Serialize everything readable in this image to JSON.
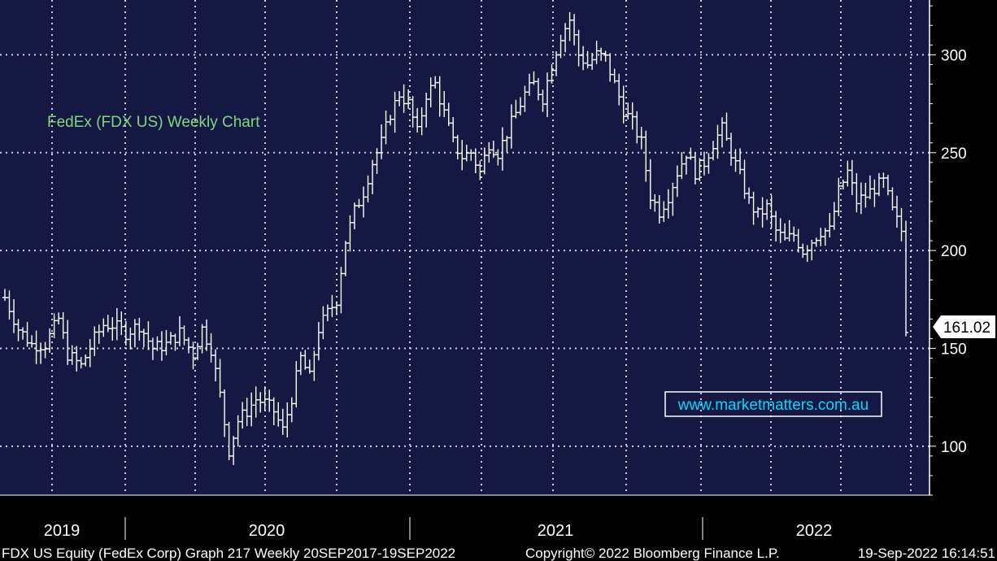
{
  "chart_data": {
    "type": "line",
    "title": "FedEx (FDX US) Weekly Chart",
    "watermark": "www.marketmatters.com.au",
    "last_price_label": "161.02",
    "ylim": [
      75,
      328
    ],
    "yticks": [
      100,
      150,
      200,
      250,
      300
    ],
    "xlabel": "",
    "ylabel": "",
    "x_labels": [
      "2019",
      "2020",
      "2021",
      "2022"
    ],
    "grid": true,
    "series": [
      {
        "values": [
          [
            0,
            176
          ],
          [
            3,
            160
          ],
          [
            6,
            152
          ],
          [
            9,
            152
          ],
          [
            12,
            165
          ],
          [
            14,
            147
          ],
          [
            17,
            141
          ],
          [
            20,
            155
          ],
          [
            22,
            162
          ],
          [
            24,
            162
          ],
          [
            27,
            158
          ],
          [
            30,
            162
          ],
          [
            33,
            150
          ],
          [
            36,
            152
          ],
          [
            39,
            158
          ],
          [
            42,
            147
          ],
          [
            44,
            160
          ],
          [
            46,
            150
          ],
          [
            48,
            126
          ],
          [
            50,
            98
          ],
          [
            52,
            113
          ],
          [
            54,
            118
          ],
          [
            56,
            124
          ],
          [
            58,
            122
          ],
          [
            60,
            118
          ],
          [
            62,
            108
          ],
          [
            64,
            125
          ],
          [
            66,
            145
          ],
          [
            68,
            135
          ],
          [
            70,
            160
          ],
          [
            72,
            168
          ],
          [
            74,
            175
          ],
          [
            76,
            205
          ],
          [
            78,
            220
          ],
          [
            80,
            230
          ],
          [
            82,
            245
          ],
          [
            84,
            255
          ],
          [
            86,
            270
          ],
          [
            88,
            280
          ],
          [
            90,
            275
          ],
          [
            92,
            260
          ],
          [
            94,
            280
          ],
          [
            96,
            285
          ],
          [
            98,
            270
          ],
          [
            100,
            255
          ],
          [
            102,
            248
          ],
          [
            104,
            250
          ],
          [
            106,
            240
          ],
          [
            108,
            255
          ],
          [
            110,
            250
          ],
          [
            112,
            260
          ],
          [
            114,
            270
          ],
          [
            116,
            280
          ],
          [
            118,
            285
          ],
          [
            120,
            278
          ],
          [
            122,
            295
          ],
          [
            124,
            310
          ],
          [
            126,
            318
          ],
          [
            128,
            300
          ],
          [
            130,
            295
          ],
          [
            132,
            300
          ],
          [
            134,
            298
          ],
          [
            136,
            285
          ],
          [
            138,
            272
          ],
          [
            140,
            265
          ],
          [
            142,
            255
          ],
          [
            144,
            228
          ],
          [
            146,
            220
          ],
          [
            148,
            228
          ],
          [
            150,
            240
          ],
          [
            152,
            250
          ],
          [
            154,
            240
          ],
          [
            156,
            245
          ],
          [
            158,
            255
          ],
          [
            160,
            262
          ],
          [
            162,
            250
          ],
          [
            164,
            238
          ],
          [
            166,
            225
          ],
          [
            168,
            218
          ],
          [
            170,
            222
          ],
          [
            172,
            210
          ],
          [
            174,
            205
          ],
          [
            176,
            208
          ],
          [
            178,
            200
          ],
          [
            180,
            205
          ],
          [
            182,
            210
          ],
          [
            184,
            210
          ],
          [
            186,
            230
          ],
          [
            188,
            240
          ],
          [
            190,
            225
          ],
          [
            192,
            228
          ],
          [
            194,
            232
          ],
          [
            196,
            235
          ],
          [
            198,
            220
          ],
          [
            200,
            210
          ],
          [
            201,
            161
          ]
        ]
      }
    ]
  },
  "footer": {
    "left": "FDX US Equity (FedEx Corp) Graph 217  Weekly 20SEP2017-19SEP2022",
    "center": "Copyright© 2022 Bloomberg Finance L.P.",
    "right": "19-Sep-2022 16:14:51"
  },
  "colors": {
    "plot_bg": "#161844",
    "axis_bg": "#000000",
    "grid": "#cfcfcf",
    "price": "#ffffff",
    "title": "#7dd87d",
    "watermark": "#00d8ff",
    "label_bg": "#ffffff"
  }
}
